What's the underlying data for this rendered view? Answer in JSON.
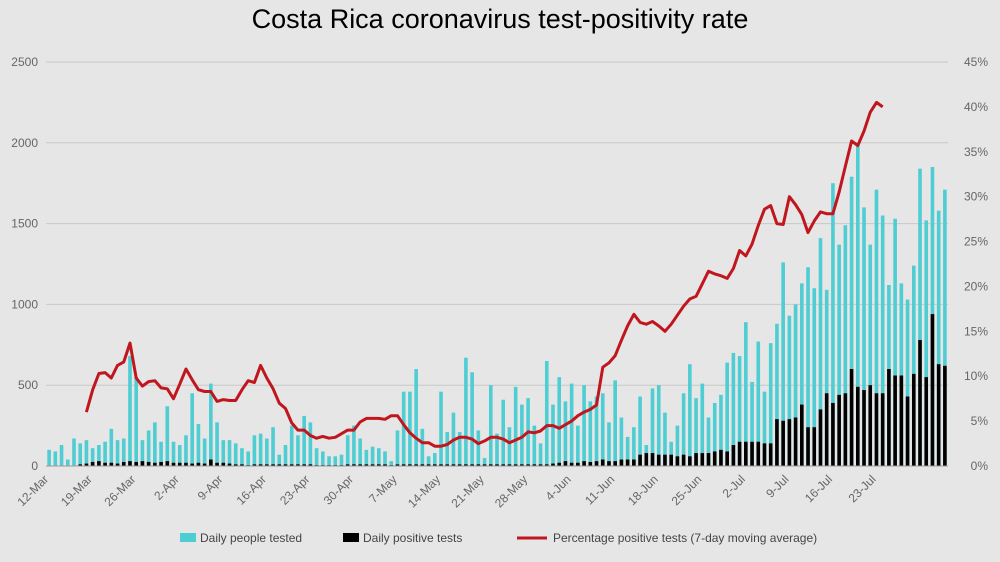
{
  "chart_data": {
    "type": "bar",
    "title": "Costa Rica coronavirus test-positivity rate",
    "x_tick_labels": [
      "12-Mar",
      "19-Mar",
      "26-Mar",
      "2-Apr",
      "9-Apr",
      "16-Apr",
      "23-Apr",
      "30-Apr",
      "7-May",
      "14-May",
      "21-May",
      "28-May",
      "4-Jun",
      "11-Jun",
      "18-Jun",
      "25-Jun",
      "2-Jul",
      "9-Jul",
      "16-Jul",
      "23-Jul"
    ],
    "y_left": {
      "ticks": [
        0,
        500,
        1000,
        1500,
        2000,
        2500
      ],
      "ylim": [
        0,
        2500
      ]
    },
    "y_right": {
      "ticks": [
        "0%",
        "5%",
        "10%",
        "15%",
        "20%",
        "25%",
        "30%",
        "35%",
        "40%",
        "45%"
      ],
      "ylim": [
        0,
        45
      ]
    },
    "grid": true,
    "legend_placement": "bottom",
    "series": [
      {
        "name": "Daily people tested",
        "kind": "bar",
        "axis": "left",
        "color": "#4ecdd3",
        "values": [
          100,
          90,
          130,
          40,
          170,
          140,
          160,
          110,
          130,
          150,
          230,
          160,
          170,
          680,
          550,
          160,
          220,
          270,
          150,
          370,
          150,
          130,
          190,
          450,
          260,
          170,
          510,
          270,
          160,
          160,
          140,
          110,
          90,
          190,
          200,
          170,
          240,
          70,
          130,
          250,
          190,
          310,
          270,
          110,
          90,
          60,
          60,
          70,
          190,
          250,
          170,
          100,
          120,
          110,
          90,
          30,
          220,
          460,
          460,
          600,
          230,
          60,
          80,
          460,
          210,
          330,
          210,
          670,
          580,
          220,
          50,
          500,
          200,
          410,
          240,
          490,
          380,
          420,
          250,
          140,
          650,
          380,
          550,
          400,
          510,
          250,
          500,
          400,
          430,
          450,
          270,
          530,
          300,
          180,
          240,
          430,
          130,
          480,
          500,
          330,
          150,
          250,
          450,
          630,
          420,
          510,
          300,
          390,
          440,
          640,
          700,
          680,
          890,
          520,
          770,
          460,
          760,
          880,
          1260,
          930,
          1000,
          1130,
          1230,
          1100,
          1410,
          1090,
          1750,
          1370,
          1490,
          1790,
          2000,
          1600,
          1370,
          1710,
          1550,
          1120,
          1530,
          1130,
          1030,
          1240,
          1840,
          1520,
          1850,
          1580,
          1710
        ]
      },
      {
        "name": "Daily positive tests",
        "kind": "bar",
        "axis": "left",
        "color": "#000000",
        "values": [
          0,
          0,
          0,
          0,
          0,
          10,
          15,
          25,
          30,
          20,
          20,
          15,
          25,
          30,
          25,
          30,
          25,
          20,
          25,
          30,
          20,
          20,
          20,
          15,
          20,
          15,
          40,
          20,
          20,
          15,
          10,
          10,
          5,
          10,
          10,
          10,
          10,
          10,
          10,
          10,
          10,
          10,
          10,
          5,
          5,
          5,
          5,
          5,
          10,
          10,
          10,
          10,
          10,
          10,
          10,
          5,
          10,
          10,
          10,
          10,
          10,
          10,
          10,
          10,
          10,
          10,
          10,
          10,
          10,
          10,
          10,
          10,
          10,
          10,
          10,
          10,
          10,
          10,
          10,
          10,
          10,
          15,
          20,
          30,
          20,
          20,
          30,
          25,
          30,
          40,
          30,
          30,
          40,
          40,
          40,
          70,
          80,
          80,
          70,
          70,
          70,
          60,
          70,
          60,
          80,
          80,
          80,
          90,
          100,
          90,
          130,
          150,
          150,
          150,
          150,
          140,
          140,
          290,
          280,
          290,
          300,
          380,
          240,
          240,
          350,
          450,
          390,
          440,
          450,
          600,
          490,
          470,
          500,
          450,
          450,
          600,
          560,
          560,
          430,
          570,
          780,
          550,
          940,
          630,
          620
        ]
      },
      {
        "name": "Percentage positive tests (7-day moving average)",
        "kind": "line",
        "axis": "right",
        "color": "#c0161d",
        "start_index": 6,
        "values": [
          6,
          8.5,
          10.3,
          10.4,
          9.8,
          11.2,
          11.6,
          13.7,
          9.8,
          8.9,
          9.4,
          9.5,
          8.7,
          8.6,
          7.5,
          9.1,
          10.8,
          9.6,
          8.5,
          8.3,
          8.3,
          7.2,
          7.4,
          7.3,
          7.3,
          8.5,
          9.5,
          9.3,
          11.2,
          9.8,
          8.6,
          7.0,
          6.4,
          4.8,
          4.0,
          4.0,
          3.4,
          3.1,
          3.3,
          3.1,
          3.2,
          3.6,
          4.0,
          4.0,
          4.9,
          5.3,
          5.3,
          5.3,
          5.2,
          5.6,
          5.6,
          4.6,
          3.7,
          3.1,
          2.6,
          2.6,
          2.2,
          2.2,
          2.4,
          2.9,
          3.2,
          3.2,
          3.0,
          2.5,
          2.8,
          3.2,
          3.2,
          3.0,
          2.6,
          2.9,
          3.2,
          3.8,
          3.7,
          3.9,
          4.5,
          4.5,
          4.2,
          4.6,
          5.0,
          5.6,
          6.0,
          6.3,
          6.8,
          11.0,
          11.5,
          12.3,
          14.0,
          15.6,
          16.9,
          16.0,
          15.8,
          16.1,
          15.6,
          15.0,
          15.8,
          16.8,
          17.8,
          18.6,
          18.9,
          20.3,
          21.7,
          21.4,
          21.2,
          20.9,
          22.0,
          24.0,
          23.4,
          24.7,
          26.8,
          28.6,
          29.0,
          27.0,
          26.9,
          30.0,
          29.1,
          28.0,
          26.0,
          27.3,
          28.3,
          28.1,
          28.1,
          30.5,
          33.4,
          36.2,
          35.7,
          37.3,
          39.4,
          40.5,
          40.0
        ]
      }
    ]
  }
}
